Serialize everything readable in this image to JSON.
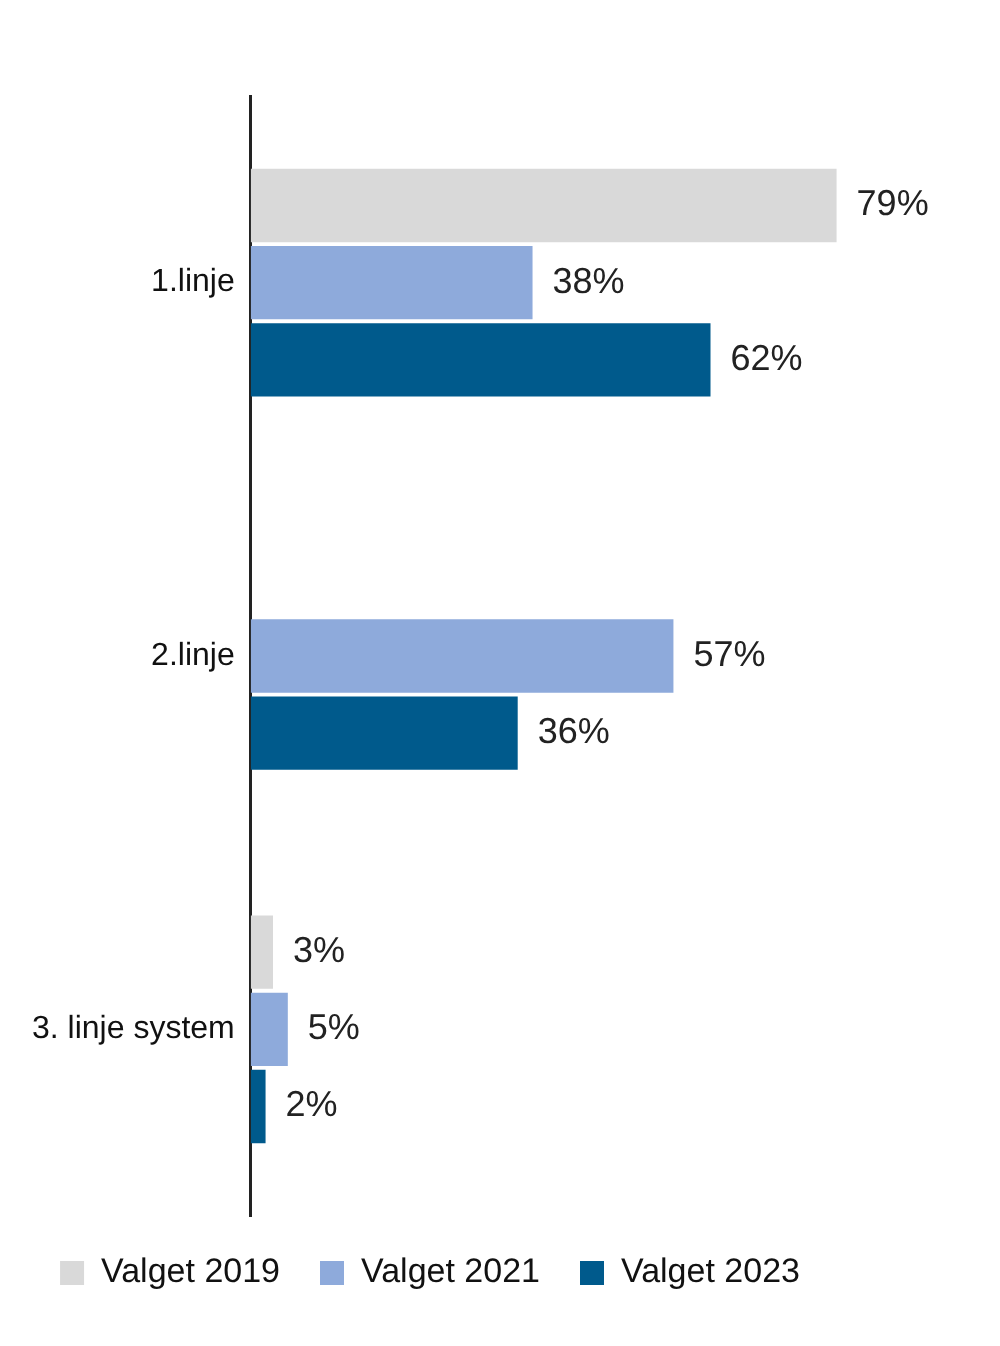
{
  "chart_data": {
    "type": "bar",
    "orientation": "horizontal",
    "categories": [
      "1.linje",
      "2.linje",
      "3. linje system"
    ],
    "series": [
      {
        "name": "Valget 2019",
        "color": "#d9d9d9",
        "values": [
          79,
          null,
          3
        ],
        "value_labels": [
          "79%",
          null,
          "3%"
        ]
      },
      {
        "name": "Valget 2021",
        "color": "#8eaadb",
        "values": [
          38,
          57,
          5
        ],
        "value_labels": [
          "38%",
          "57%",
          "5%"
        ]
      },
      {
        "name": "Valget 2023",
        "color": "#005a8c",
        "values": [
          62,
          36,
          2
        ],
        "value_labels": [
          "62%",
          "36%",
          "2%"
        ]
      }
    ],
    "legend": "bottom"
  }
}
